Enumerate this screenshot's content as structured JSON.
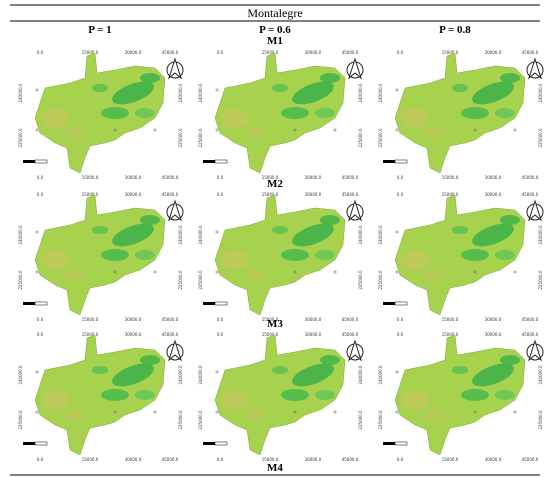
{
  "header": {
    "title": "Montalegre"
  },
  "columns": [
    "P = 1",
    "P = 0.6",
    "P = 0.8"
  ],
  "rows": [
    "M1",
    "M2",
    "M3",
    "M4"
  ],
  "map_axes": {
    "x_labels": [
      "0.0",
      "15000.0",
      "30000.0",
      "45000.0"
    ],
    "y_labels": [
      "240000.0",
      "225000.0"
    ]
  }
}
